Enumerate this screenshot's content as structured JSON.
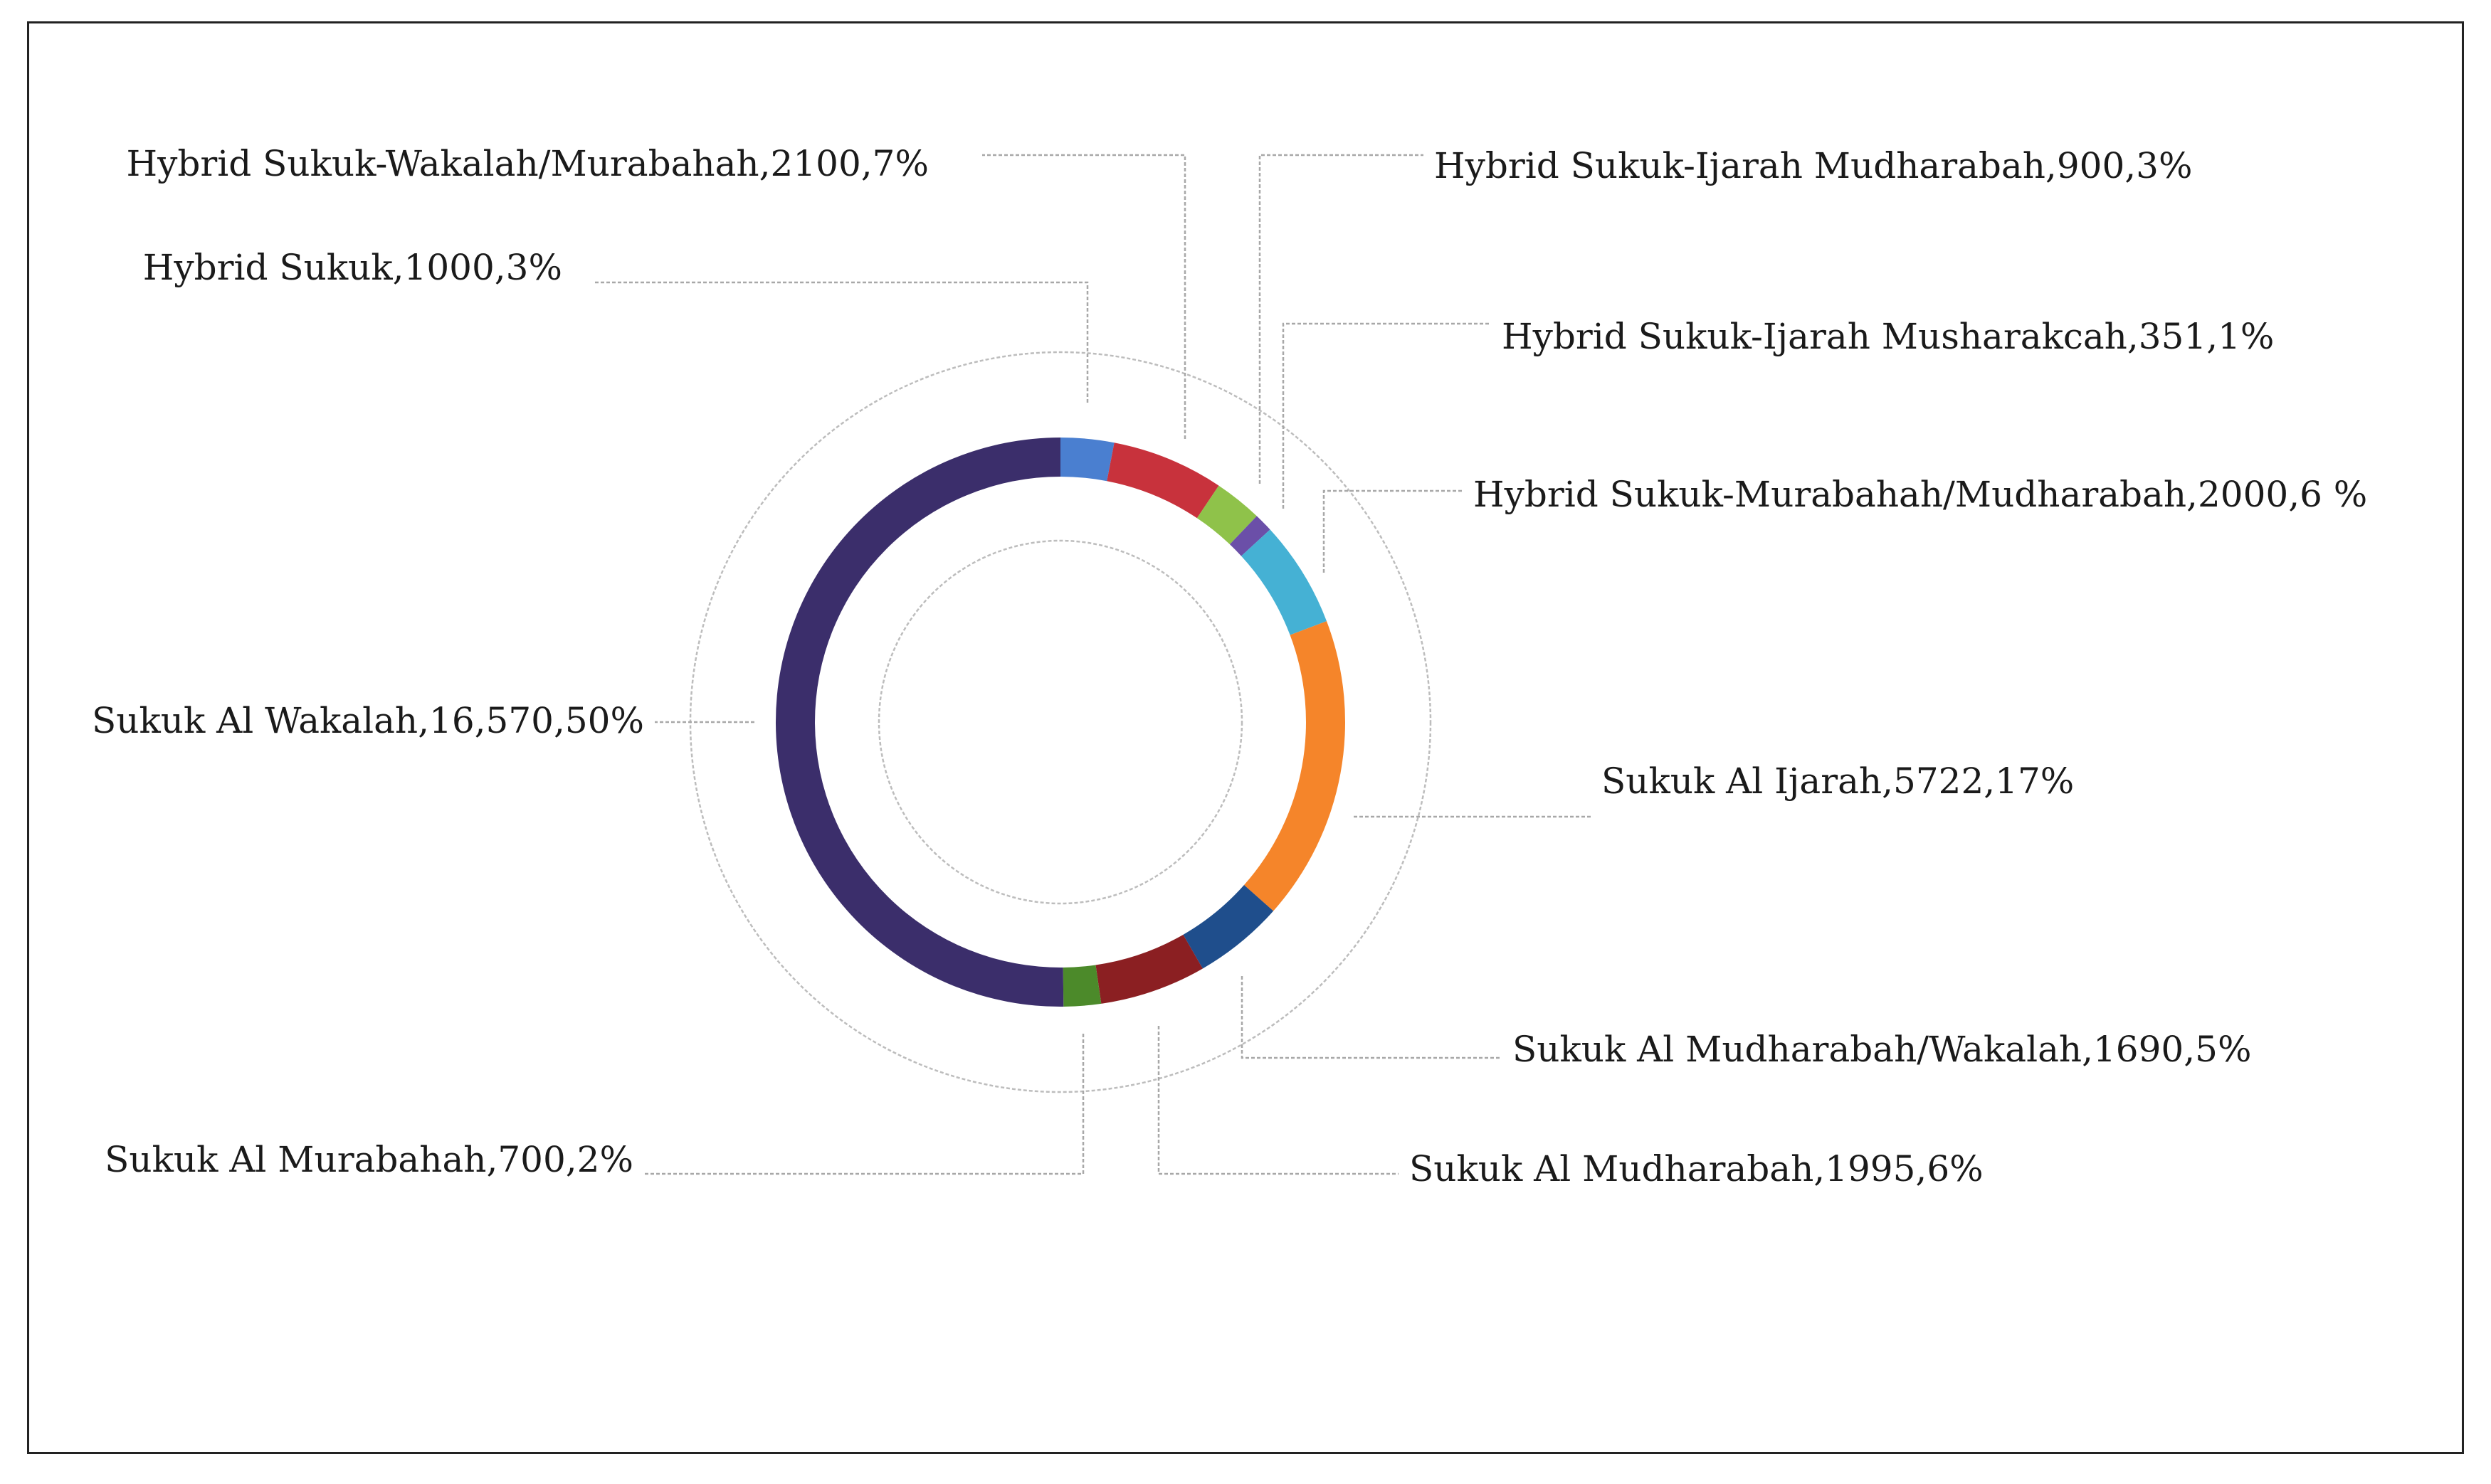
{
  "chart_data": {
    "type": "pie",
    "variant": "donut",
    "legend": "none",
    "grid": false,
    "slices": [
      {
        "label": "Hybrid Sukuk,1000,3%",
        "value": 1000,
        "percent": 3,
        "color": "#4a7fd0"
      },
      {
        "label": "Hybrid Sukuk-Wakalah/Murabahah,2100,7%",
        "value": 2100,
        "percent": 7,
        "color": "#c8323c"
      },
      {
        "label": "Hybrid Sukuk-Ijarah  Mudharabah,900,3%",
        "value": 900,
        "percent": 3,
        "color": "#8fc24a"
      },
      {
        "label": "Hybrid Sukuk-Ijarah Musharakcah,351,1%",
        "value": 351,
        "percent": 1,
        "color": "#6b4fa8"
      },
      {
        "label": "Hybrid Sukuk-Murabahah/Mudharabah,2000,6 %",
        "value": 2000,
        "percent": 6,
        "color": "#45b1d4"
      },
      {
        "label": "Sukuk Al Ijarah,5722,17%",
        "value": 5722,
        "percent": 17,
        "color": "#f5852a"
      },
      {
        "label": "Sukuk Al Mudharabah/Wakalah,1690,5%",
        "value": 1690,
        "percent": 5,
        "color": "#1f4e8c"
      },
      {
        "label": "Sukuk Al Mudharabah,1995,6%",
        "value": 1995,
        "percent": 6,
        "color": "#8b1f22"
      },
      {
        "label": "Sukuk Al Murabahah,700,2%",
        "value": 700,
        "percent": 2,
        "color": "#4c8a2a"
      },
      {
        "label": "Sukuk Al Wakalah,16,570,50%",
        "value": 16570,
        "percent": 50,
        "color": "#3b2e6b"
      }
    ]
  }
}
